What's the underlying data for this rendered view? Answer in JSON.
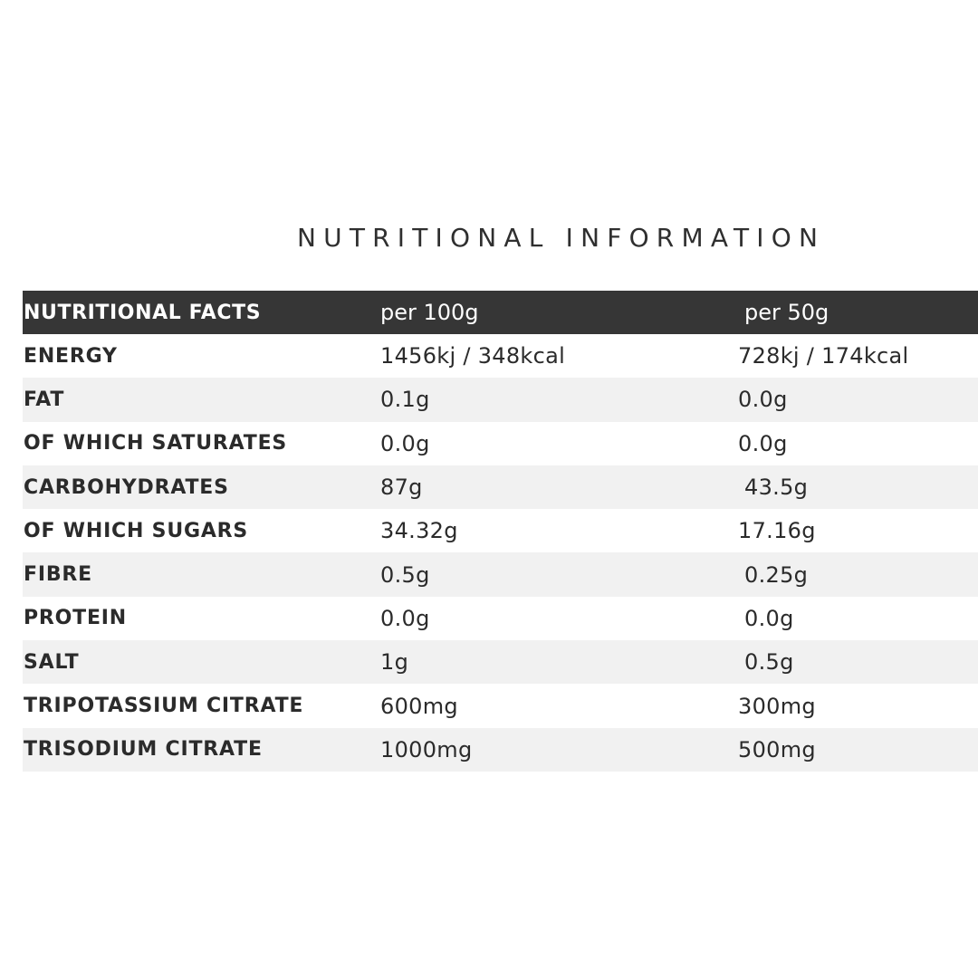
{
  "title": "NUTRITIONAL INFORMATION",
  "table": {
    "headers": [
      "NUTRITIONAL FACTS",
      "per 100g",
      "per 50g"
    ],
    "rows": [
      {
        "label": "ENERGY",
        "per100": "1456kj / 348kcal",
        "per50": "728kj / 174kcal"
      },
      {
        "label": "FAT",
        "per100": "0.1g",
        "per50": "0.0g"
      },
      {
        "label": "OF WHICH SATURATES",
        "per100": "0.0g",
        "per50": "0.0g"
      },
      {
        "label": "CARBOHYDRATES",
        "per100": "87g",
        "per50": "43.5g"
      },
      {
        "label": "OF WHICH SUGARS",
        "per100": "34.32g",
        "per50": "17.16g"
      },
      {
        "label": "FIBRE",
        "per100": "0.5g",
        "per50": "0.25g"
      },
      {
        "label": "PROTEIN",
        "per100": "0.0g",
        "per50": "0.0g"
      },
      {
        "label": "SALT",
        "per100": "1g",
        "per50": "0.5g"
      },
      {
        "label": "TRIPOTASSIUM CITRATE",
        "per100": "600mg",
        "per50": "300mg"
      },
      {
        "label": "TRISODIUM CITRATE",
        "per100": "1000mg",
        "per50": "500mg"
      }
    ]
  },
  "colors": {
    "header_bg": "#363636",
    "stripe_bg": "#f1f1f1",
    "text": "#2b2b2b"
  }
}
